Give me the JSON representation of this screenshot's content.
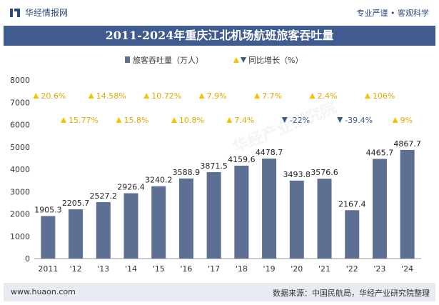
{
  "header": {
    "logo_text": "华经情报网",
    "slogan": "专业严谨 • 客观科学"
  },
  "title": "2011-2024年重庆江北机场航班旅客吞吐量",
  "footer": {
    "website": "www.huaon.com",
    "source": "数据来源：中国民航局，华经产业研究院整理"
  },
  "watermark": "华经产业研究院",
  "colors": {
    "bar": "#5d6f93",
    "up_marker": "#f5c400",
    "down_marker": "#3d5d80",
    "title_bg": "#3f5b8f",
    "footer_bg": "#e7ecf3"
  },
  "chart_data": {
    "type": "bar",
    "title": "2011-2024年重庆江北机场航班旅客吞吐量",
    "categories": [
      "2011",
      "'12",
      "'13",
      "'14",
      "'15",
      "'16",
      "'17",
      "'18",
      "'19",
      "'20",
      "'21",
      "'22",
      "'23",
      "'24"
    ],
    "series": [
      {
        "name": "旅客吞吐量（万人）",
        "values": [
          1905.3,
          2205.7,
          2527.2,
          2926.4,
          3240.2,
          3588.9,
          3871.5,
          4159.6,
          4478.7,
          3493.8,
          3576.6,
          2167.4,
          4465.7,
          4867.7
        ],
        "labels": [
          "1905.3",
          "2205.7",
          "2527.2",
          "2926.4",
          "3240.2",
          "3588.9",
          "3871.5",
          "4159.6",
          "4478.7",
          "3493.8",
          "3576.6",
          "2167.4",
          "4465.7",
          "4867.7"
        ]
      },
      {
        "name": "同比增长（%）",
        "values": [
          20.6,
          15.77,
          14.58,
          15.8,
          10.72,
          10.8,
          7.9,
          7.4,
          7.7,
          -22,
          2.4,
          -39.4,
          106,
          9
        ],
        "labels": [
          "20.6%",
          "15.77%",
          "14.58%",
          "15.8%",
          "10.72%",
          "10.8%",
          "7.9%",
          "7.4%",
          "7.7%",
          "-22%",
          "2.4%",
          "-39.4%",
          "106%",
          "9%"
        ]
      }
    ],
    "legend": [
      "旅客吞吐量（万人）",
      "同比增长（%）"
    ],
    "yticks": [
      "0",
      "1000",
      "2000",
      "3000",
      "4000",
      "5000",
      "6000",
      "7000",
      "8000"
    ],
    "ylim": [
      0,
      8000
    ],
    "xlabel": "",
    "ylabel": ""
  }
}
